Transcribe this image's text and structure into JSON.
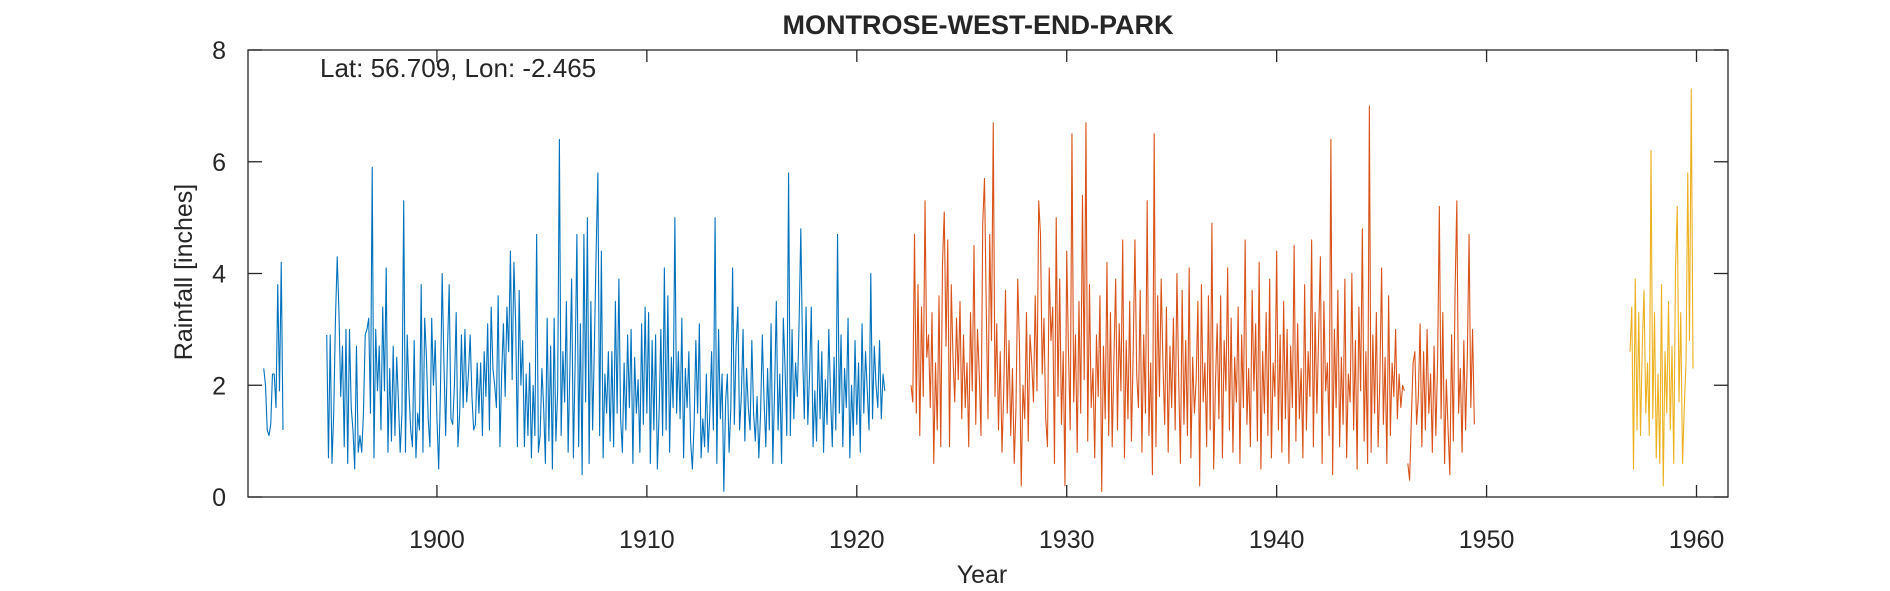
{
  "chart_data": {
    "type": "line",
    "title": "MONTROSE-WEST-END-PARK",
    "xlabel": "Year",
    "ylabel": "Rainfall [inches]",
    "annotation": "Lat: 56.709, Lon: -2.465",
    "xlim": [
      1891,
      1961.5
    ],
    "ylim": [
      0,
      8
    ],
    "x_ticks": [
      1900,
      1910,
      1920,
      1930,
      1940,
      1950,
      1960
    ],
    "y_ticks": [
      0,
      2,
      4,
      6,
      8
    ],
    "grid": false,
    "legend": "none",
    "x_unit": "year (monthly observations)",
    "series": [
      {
        "color": "#0072BD",
        "start_year": 1891.75,
        "values": [
          2.3,
          2.0,
          1.2,
          1.1,
          1.3,
          2.2,
          2.2,
          1.6,
          3.8,
          1.9,
          4.2,
          1.2,
          null,
          null,
          null,
          null,
          null,
          null,
          null,
          null,
          null,
          null,
          null,
          null,
          null,
          null,
          null,
          null,
          null,
          null,
          null,
          null,
          null,
          null,
          null,
          null,
          2.9,
          0.7,
          2.9,
          0.6,
          1.5,
          3.2,
          4.3,
          3.3,
          1.8,
          2.7,
          0.9,
          3.0,
          0.6,
          3.0,
          1.6,
          1.2,
          0.5,
          2.7,
          0.8,
          1.1,
          0.8,
          1.5,
          2.9,
          3.0,
          3.2,
          1.5,
          5.9,
          0.7,
          3.0,
          1.9,
          2.7,
          1.2,
          3.4,
          1.9,
          4.1,
          0.8,
          2.3,
          1.0,
          2.7,
          1.1,
          2.5,
          1.7,
          0.8,
          1.5,
          5.3,
          0.8,
          2.9,
          1.9,
          1.2,
          0.9,
          2.8,
          0.7,
          1.5,
          1.2,
          3.8,
          0.8,
          3.2,
          2.5,
          1.4,
          0.9,
          3.2,
          2.0,
          2.8,
          1.4,
          0.5,
          1.9,
          4.0,
          2.4,
          1.1,
          2.6,
          3.8,
          1.4,
          1.3,
          2.0,
          3.3,
          0.9,
          1.5,
          2.9,
          1.6,
          3.0,
          1.7,
          2.2,
          2.9,
          1.8,
          1.2,
          1.3,
          2.4,
          1.5,
          2.4,
          1.1,
          2.6,
          1.8,
          3.1,
          1.2,
          3.4,
          2.3,
          2.0,
          1.6,
          3.6,
          0.9,
          2.2,
          3.1,
          1.8,
          3.4,
          2.6,
          4.4,
          2.1,
          4.2,
          3.1,
          0.9,
          3.7,
          2.0,
          2.8,
          0.9,
          2.2,
          1.1,
          2.4,
          0.7,
          2.0,
          1.1,
          4.7,
          0.8,
          1.1,
          2.3,
          1.6,
          0.6,
          3.2,
          1.0,
          2.7,
          0.5,
          3.2,
          1.0,
          1.9,
          6.4,
          1.1,
          2.6,
          1.7,
          3.5,
          0.8,
          2.3,
          3.9,
          0.7,
          2.4,
          4.7,
          0.9,
          3.1,
          0.4,
          4.7,
          1.7,
          5.0,
          0.6,
          3.5,
          1.2,
          2.7,
          4.4,
          5.8,
          1.1,
          4.4,
          0.7,
          2.2,
          1.5,
          2.6,
          1.0,
          2.6,
          0.9,
          3.5,
          1.5,
          3.9,
          1.4,
          0.8,
          2.4,
          1.2,
          2.9,
          1.6,
          3.0,
          0.6,
          2.5,
          1.5,
          2.1,
          0.8,
          3.1,
          1.3,
          3.4,
          1.5,
          3.3,
          0.6,
          2.8,
          1.2,
          2.9,
          0.5,
          1.5,
          3.0,
          1.1,
          4.1,
          1.2,
          3.6,
          0.8,
          2.5,
          1.6,
          5.0,
          1.5,
          2.6,
          1.4,
          3.2,
          0.7,
          2.3,
          1.6,
          2.6,
          1.0,
          0.5,
          1.3,
          2.8,
          1.5,
          3.1,
          0.7,
          1.4,
          0.9,
          2.2,
          0.8,
          1.5,
          2.6,
          1.2,
          5.0,
          0.6,
          3.0,
          1.4,
          2.2,
          0.1,
          1.7,
          2.2,
          0.8,
          1.6,
          4.1,
          1.3,
          2.7,
          3.4,
          1.2,
          1.8,
          3.0,
          1.0,
          2.3,
          1.6,
          1.2,
          2.8,
          1.5,
          1.0,
          1.8,
          0.7,
          1.5,
          2.9,
          1.7,
          0.9,
          2.3,
          1.2,
          3.1,
          0.6,
          1.9,
          3.5,
          1.2,
          2.2,
          0.6,
          3.2,
          2.3,
          1.1,
          5.8,
          1.1,
          3.0,
          1.4,
          2.4,
          1.8,
          3.1,
          4.8,
          2.6,
          1.4,
          3.4,
          1.3,
          2.2,
          3.4,
          0.9,
          1.9,
          1.0,
          2.8,
          1.4,
          2.6,
          0.8,
          2.1,
          1.3,
          3.0,
          1.8,
          0.9,
          2.5,
          1.2,
          4.7,
          1.5,
          2.9,
          0.9,
          2.3,
          1.6,
          3.2,
          0.7,
          2.0,
          1.1,
          2.8,
          1.3,
          2.4,
          0.8,
          3.1,
          1.5,
          2.6,
          1.9,
          1.2,
          4.0,
          1.4,
          2.7,
          2.0,
          1.6,
          2.8,
          1.4,
          2.2,
          1.9
        ]
      },
      {
        "color": "#D95319",
        "start_year": 1922.583,
        "values": [
          2.0,
          1.7,
          4.7,
          1.5,
          3.8,
          1.1,
          3.4,
          1.8,
          5.3,
          2.5,
          2.9,
          1.6,
          3.3,
          0.6,
          2.4,
          1.2,
          3.6,
          0.9,
          4.2,
          5.1,
          2.7,
          4.6,
          0.9,
          3.8,
          2.5,
          1.7,
          3.2,
          2.1,
          3.5,
          1.4,
          2.9,
          1.6,
          2.4,
          0.9,
          3.3,
          1.9,
          4.5,
          1.3,
          3.0,
          2.2,
          1.1,
          4.9,
          5.7,
          3.4,
          1.4,
          4.7,
          2.8,
          6.7,
          1.8,
          3.1,
          1.2,
          2.6,
          0.8,
          1.9,
          3.7,
          1.5,
          2.8,
          1.1,
          2.3,
          0.6,
          1.6,
          3.9,
          2.7,
          0.2,
          2.0,
          1.4,
          3.3,
          1.0,
          2.9,
          2.4,
          1.7,
          3.6,
          1.9,
          5.3,
          4.7,
          2.2,
          3.2,
          1.4,
          0.9,
          4.1,
          2.8,
          3.4,
          0.6,
          5.0,
          1.8,
          3.9,
          1.3,
          2.6,
          0.2,
          4.4,
          2.6,
          1.2,
          6.5,
          1.7,
          2.9,
          0.8,
          3.5,
          1.5,
          5.4,
          2.1,
          6.7,
          1.0,
          3.8,
          1.6,
          2.3,
          0.7,
          2.9,
          1.8,
          3.6,
          0.1,
          2.7,
          1.4,
          4.2,
          1.1,
          3.3,
          0.9,
          2.5,
          3.9,
          1.2,
          3.1,
          1.9,
          4.6,
          0.7,
          2.8,
          1.4,
          3.5,
          1.0,
          2.6,
          4.6,
          2.2,
          1.6,
          3.7,
          0.8,
          2.9,
          1.5,
          5.3,
          1.1,
          2.4,
          0.4,
          6.5,
          0.9,
          3.6,
          1.8,
          3.9,
          2.4,
          1.3,
          3.4,
          0.8,
          2.7,
          1.6,
          3.2,
          1.2,
          4.0,
          2.1,
          0.6,
          3.7,
          1.3,
          2.8,
          1.1,
          4.1,
          0.7,
          2.5,
          1.5,
          2.1,
          3.5,
          0.2,
          3.8,
          1.7,
          2.4,
          0.9,
          3.6,
          1.2,
          4.9,
          0.5,
          2.0,
          3.1,
          1.4,
          3.6,
          0.7,
          2.8,
          1.9,
          4.1,
          1.2,
          3.2,
          0.8,
          2.5,
          1.7,
          3.4,
          0.6,
          2.9,
          1.6,
          4.6,
          1.3,
          2.3,
          0.9,
          3.7,
          1.9,
          3.1,
          1.0,
          4.2,
          0.5,
          2.6,
          1.5,
          3.3,
          1.1,
          3.9,
          0.7,
          2.4,
          1.8,
          4.4,
          1.2,
          2.9,
          0.8,
          3.5,
          1.4,
          3.0,
          0.6,
          2.7,
          1.6,
          4.5,
          1.0,
          3.1,
          1.4,
          2.3,
          0.7,
          3.8,
          1.2,
          2.6,
          1.8,
          4.6,
          0.9,
          3.3,
          1.5,
          2.9,
          4.3,
          0.6,
          3.5,
          1.9,
          2.4,
          1.1,
          6.4,
          0.4,
          3.0,
          1.6,
          3.7,
          0.9,
          2.5,
          1.3,
          3.9,
          0.7,
          2.2,
          1.7,
          4.0,
          1.2,
          2.8,
          0.5,
          3.4,
          1.9,
          4.8,
          1.0,
          2.6,
          0.6,
          7.0,
          0.8,
          2.9,
          1.5,
          3.3,
          0.9,
          2.1,
          4.1,
          1.3,
          2.5,
          0.6,
          3.6,
          1.1,
          2.4,
          1.8,
          3.0,
          1.4,
          2.2,
          1.6,
          2.0,
          1.9,
          null,
          0.6,
          0.3,
          1.4,
          2.4,
          2.6,
          1.3,
          1.8,
          3.1,
          0.9,
          2.6,
          1.2,
          3.0,
          1.5,
          2.2,
          0.8,
          2.7,
          1.1,
          2.4,
          5.2,
          1.4,
          3.3,
          0.6,
          2.1,
          1.2,
          0.4,
          2.9,
          1.0,
          3.7,
          5.3,
          1.5,
          2.3,
          0.8,
          2.8,
          1.2,
          2.5,
          4.7,
          1.6,
          3.0,
          1.3
        ]
      },
      {
        "color": "#EDB120",
        "start_year": 1956.833,
        "values": [
          2.6,
          3.4,
          0.5,
          3.9,
          1.2,
          3.3,
          1.1,
          2.7,
          3.7,
          1.5,
          2.4,
          1.1,
          6.2,
          1.4,
          3.3,
          0.7,
          2.2,
          0.6,
          3.8,
          0.2,
          2.6,
          1.5,
          3.5,
          1.2,
          2.7,
          0.6,
          4.1,
          5.2,
          1.7,
          3.3,
          0.6,
          1.6,
          2.4,
          5.8,
          2.8,
          7.3,
          2.3
        ]
      }
    ]
  }
}
